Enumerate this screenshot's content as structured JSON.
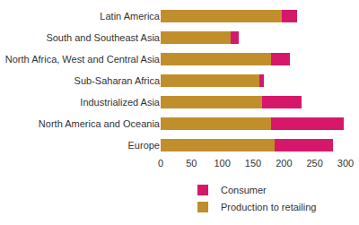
{
  "chart_data": {
    "type": "bar",
    "orientation": "horizontal",
    "stacked": true,
    "grid": false,
    "legend": "bottom",
    "categories": [
      "Latin America",
      "South and Southeast Asia",
      "North Africa, West and Central Asia",
      "Sub-Saharan Africa",
      "Industrialized Asia",
      "North America and Oceania",
      "Europe"
    ],
    "series": [
      {
        "name": "Production to retailing",
        "color": "#c08f2c",
        "values": [
          196,
          114,
          179,
          160,
          164,
          179,
          185
        ]
      },
      {
        "name": "Consumer",
        "color": "#d6186a",
        "values": [
          25,
          12,
          30,
          7,
          64,
          118,
          95
        ]
      }
    ],
    "xlim": [
      0,
      300
    ],
    "xticks": [
      0,
      50,
      100,
      150,
      200,
      250,
      300
    ]
  }
}
